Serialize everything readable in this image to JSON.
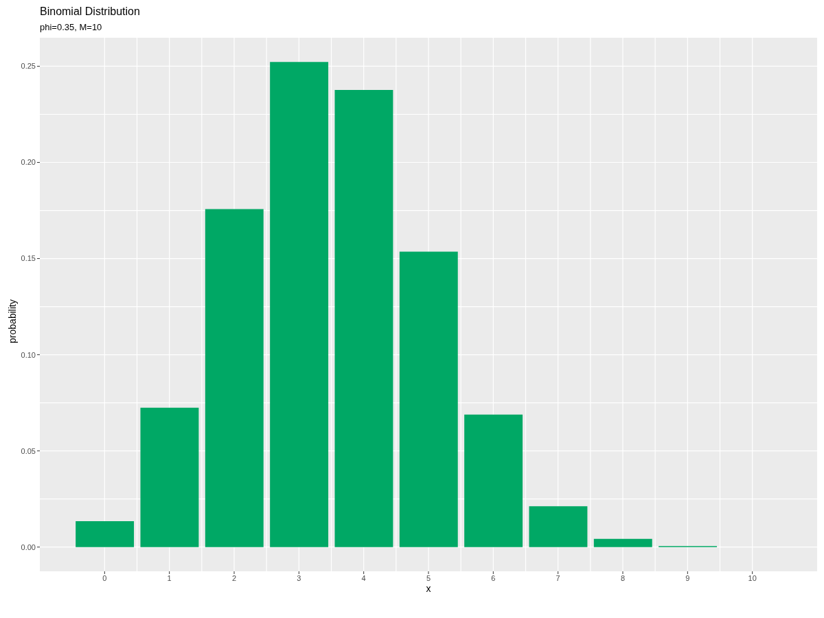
{
  "chart_data": {
    "type": "bar",
    "title": "Binomial Distribution",
    "subtitle": "phi=0.35, M=10",
    "xlabel": "x",
    "ylabel": "probability",
    "x": [
      0,
      1,
      2,
      3,
      4,
      5,
      6,
      7,
      8,
      9,
      10
    ],
    "values": [
      0.0135,
      0.0725,
      0.1757,
      0.2522,
      0.2377,
      0.1536,
      0.0689,
      0.0212,
      0.0043,
      0.0005,
      0
    ],
    "color": "#00a865",
    "xlim": [
      -1,
      11
    ],
    "xticks": [
      0,
      1,
      2,
      3,
      4,
      5,
      6,
      7,
      8,
      9,
      10
    ],
    "ylim": [
      -0.0126,
      0.2648
    ],
    "yticks": [
      {
        "value": 0,
        "label": "0.00"
      },
      {
        "value": 0.05,
        "label": "0.05"
      },
      {
        "value": 0.1,
        "label": "0.10"
      },
      {
        "value": 0.15,
        "label": "0.15"
      },
      {
        "value": 0.2,
        "label": "0.20"
      },
      {
        "value": 0.25,
        "label": "0.25"
      }
    ],
    "grid": true
  }
}
